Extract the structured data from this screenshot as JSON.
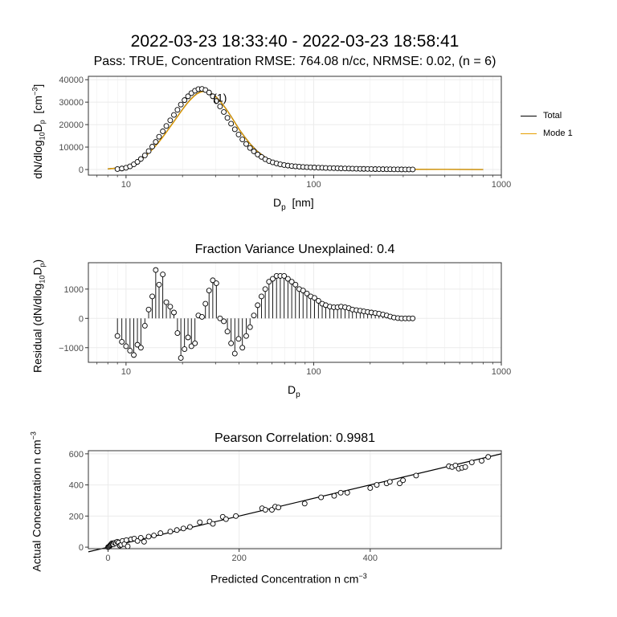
{
  "header": {
    "title": "2022-03-23 18:33:40 - 2022-03-23 18:58:41",
    "subtitle": "Pass: TRUE, Concentration RMSE: 764.08 n/cc, NRMSE: 0.02, (n = 6)"
  },
  "colors": {
    "total": "#000000",
    "mode1": "#E69F00",
    "grid": "#ebebeb",
    "point": "#000000"
  },
  "chart_data": [
    {
      "type": "scatter",
      "xscale": "log",
      "xlim": [
        6.3,
        1000
      ],
      "ylim": [
        -2500,
        41500
      ],
      "xticks": [
        10,
        100,
        1000
      ],
      "xtick_labels": [
        "10",
        "100",
        "1000"
      ],
      "yticks": [
        0,
        10000,
        20000,
        30000,
        40000
      ],
      "ytick_labels": [
        "0",
        "10000",
        "20000",
        "30000",
        "40000"
      ],
      "xlabel_main": "D",
      "xlabel_sub": "p",
      "xlabel_unit": "[nm]",
      "ylabel_main": "dN/dlog",
      "ylabel_sub1": "10",
      "ylabel_mid": "D",
      "ylabel_sub2": "p",
      "ylabel_unit": "[cm",
      "ylabel_sup": "−3",
      "ylabel_close": "]",
      "annotation": "(1)",
      "annotation_at": [
        30,
        32000
      ],
      "legend": [
        "Total",
        "Mode 1"
      ],
      "legend_position": "right",
      "grid": true,
      "measured": {
        "x": [
          9,
          9.5,
          10,
          10.5,
          11,
          11.5,
          12,
          12.6,
          13.2,
          13.8,
          14.4,
          15,
          15.7,
          16.4,
          17.2,
          18,
          18.8,
          19.6,
          20.5,
          21.4,
          22.3,
          23.3,
          24.3,
          25.4,
          26.5,
          27.7,
          29,
          30.3,
          31.7,
          33.2,
          34.7,
          36.3,
          38,
          39.8,
          41.7,
          43.7,
          45.8,
          48,
          50.3,
          52.7,
          55.2,
          57.8,
          60.5,
          63.4,
          66.4,
          69.6,
          72.9,
          76.4,
          80,
          83.8,
          87.8,
          92,
          96.4,
          101,
          106,
          111,
          116,
          122,
          128,
          134,
          140,
          147,
          154,
          161,
          169,
          177,
          185,
          194,
          203,
          213,
          223,
          234,
          245,
          256,
          268,
          281,
          294,
          308,
          322,
          337
        ],
        "y": [
          200,
          450,
          800,
          1400,
          2300,
          3400,
          4700,
          6300,
          8200,
          10200,
          12300,
          14600,
          17000,
          19400,
          21900,
          24300,
          26600,
          28900,
          30900,
          32600,
          34000,
          35100,
          35800,
          35900,
          35400,
          34300,
          32600,
          30500,
          28100,
          25600,
          23000,
          20400,
          17900,
          15600,
          13400,
          11400,
          9600,
          8100,
          6700,
          5600,
          4600,
          3800,
          3200,
          2700,
          2300,
          2000,
          1750,
          1550,
          1400,
          1270,
          1150,
          1060,
          980,
          900,
          830,
          770,
          710,
          650,
          600,
          550,
          500,
          460,
          420,
          380,
          340,
          300,
          270,
          240,
          210,
          180,
          160,
          140,
          120,
          100,
          80,
          60,
          45,
          30,
          20,
          10
        ]
      },
      "fit_total": {
        "x": [
          8,
          9,
          10,
          11,
          12,
          13,
          14,
          15,
          16,
          17,
          18,
          19,
          20,
          21,
          22,
          23,
          24,
          25,
          26,
          27,
          28,
          30,
          32,
          34,
          36,
          38,
          40,
          43,
          46,
          50,
          55,
          60,
          66,
          73,
          80,
          90,
          100,
          120,
          150,
          200,
          300,
          500,
          800
        ],
        "y": [
          300,
          700,
          1400,
          2700,
          4500,
          6800,
          9500,
          12400,
          15400,
          18500,
          21400,
          24200,
          26800,
          29100,
          31100,
          32700,
          33900,
          34600,
          34900,
          34800,
          34300,
          32600,
          30100,
          27200,
          24100,
          21000,
          18000,
          14400,
          11300,
          8200,
          5600,
          3800,
          2500,
          1600,
          1200,
          900,
          750,
          550,
          400,
          250,
          120,
          40,
          10
        ]
      },
      "fit_mode1": {
        "x": [
          8,
          9,
          10,
          11,
          12,
          13,
          14,
          15,
          16,
          17,
          18,
          19,
          20,
          21,
          22,
          23,
          24,
          25,
          26,
          27,
          28,
          30,
          32,
          34,
          36,
          38,
          40,
          43,
          46,
          50,
          55,
          60,
          66,
          73,
          80,
          90,
          100,
          120,
          150,
          200,
          300,
          500,
          800
        ],
        "y": [
          250,
          650,
          1350,
          2600,
          4400,
          6700,
          9400,
          12300,
          15300,
          18400,
          21300,
          24100,
          26700,
          29000,
          31000,
          32600,
          33800,
          34500,
          34800,
          34700,
          34200,
          32500,
          30000,
          27100,
          24000,
          20900,
          17900,
          14300,
          11200,
          8100,
          5500,
          3700,
          2400,
          1500,
          1100,
          850,
          700,
          520,
          380,
          240,
          110,
          35,
          8
        ]
      }
    },
    {
      "type": "scatter",
      "title": "Fraction Variance Unexplained: 0.4",
      "xscale": "log",
      "xlim": [
        6.3,
        1000
      ],
      "ylim": [
        -1500,
        1900
      ],
      "xticks": [
        10,
        100,
        1000
      ],
      "xtick_labels": [
        "10",
        "100",
        "1000"
      ],
      "yticks": [
        -1000,
        0,
        1000
      ],
      "ytick_labels": [
        "−1000",
        "0",
        "1000"
      ],
      "xlabel_main": "D",
      "xlabel_sub": "p",
      "ylabel_main": "Residual (dN/dlog",
      "ylabel_sub1": "10",
      "ylabel_mid": "D",
      "ylabel_sub2": "p",
      "ylabel_close": ")",
      "grid": true,
      "residuals": {
        "x": [
          9,
          9.5,
          10,
          10.5,
          11,
          11.5,
          12,
          12.6,
          13.2,
          13.8,
          14.4,
          15,
          15.7,
          16.4,
          17.2,
          18,
          18.8,
          19.6,
          20.5,
          21.4,
          22.3,
          23.3,
          24.3,
          25.4,
          26.5,
          27.7,
          29,
          30.3,
          31.7,
          33.2,
          34.7,
          36.3,
          38,
          39.8,
          41.7,
          43.7,
          45.8,
          48,
          50.3,
          52.7,
          55.2,
          57.8,
          60.5,
          63.4,
          66.4,
          69.6,
          72.9,
          76.4,
          80,
          83.8,
          87.8,
          92,
          96.4,
          101,
          106,
          111,
          116,
          122,
          128,
          134,
          140,
          147,
          154,
          161,
          169,
          177,
          185,
          194,
          203,
          213,
          223,
          234,
          245,
          256,
          268,
          281,
          294,
          308,
          322,
          337
        ],
        "y": [
          -600,
          -800,
          -950,
          -1100,
          -1250,
          -900,
          -1000,
          -250,
          300,
          750,
          1650,
          1150,
          1500,
          550,
          400,
          200,
          -500,
          -1350,
          -1050,
          -650,
          -950,
          -850,
          100,
          50,
          500,
          950,
          1300,
          1200,
          0,
          -100,
          -450,
          -850,
          -1200,
          -700,
          -1000,
          -600,
          -300,
          100,
          450,
          750,
          1000,
          1250,
          1350,
          1450,
          1450,
          1450,
          1350,
          1250,
          1150,
          1000,
          950,
          850,
          750,
          700,
          600,
          500,
          450,
          400,
          380,
          380,
          400,
          380,
          350,
          300,
          280,
          260,
          240,
          220,
          200,
          180,
          160,
          130,
          100,
          60,
          30,
          10,
          0,
          0,
          0,
          0
        ]
      }
    },
    {
      "type": "scatter",
      "title": "Pearson Correlation: 0.9981",
      "xlim": [
        -30,
        600
      ],
      "ylim": [
        -10,
        620
      ],
      "xticks": [
        0,
        200,
        400
      ],
      "xtick_labels": [
        "0",
        "200",
        "400"
      ],
      "yticks": [
        0,
        200,
        400,
        600
      ],
      "ytick_labels": [
        "0",
        "200",
        "400",
        "600"
      ],
      "xlabel": "Predicted Concentration  n cm",
      "xlabel_sup": "−3",
      "ylabel": "Actual Concentration  n cm",
      "ylabel_sup": "−3",
      "grid": true,
      "fit_line": {
        "slope": 1.0,
        "intercept": 0
      },
      "points": {
        "x": [
          0,
          1,
          2,
          3,
          4,
          5,
          6,
          7,
          8,
          10,
          12,
          14,
          16,
          18,
          20,
          22,
          25,
          28,
          30,
          35,
          40,
          45,
          50,
          55,
          62,
          70,
          80,
          95,
          105,
          115,
          125,
          140,
          155,
          160,
          175,
          180,
          195,
          235,
          240,
          250,
          255,
          260,
          300,
          325,
          345,
          355,
          365,
          400,
          410,
          425,
          430,
          445,
          450,
          470,
          520,
          525,
          530,
          535,
          540,
          545,
          555,
          570,
          580
        ],
        "y": [
          0,
          2,
          5,
          10,
          15,
          20,
          25,
          22,
          18,
          28,
          25,
          35,
          30,
          10,
          15,
          40,
          20,
          45,
          5,
          50,
          55,
          40,
          60,
          35,
          68,
          75,
          90,
          100,
          110,
          120,
          130,
          160,
          165,
          150,
          195,
          180,
          200,
          250,
          240,
          240,
          260,
          255,
          280,
          320,
          330,
          350,
          350,
          380,
          400,
          410,
          420,
          410,
          430,
          460,
          520,
          515,
          525,
          505,
          510,
          515,
          545,
          555,
          580
        ]
      }
    }
  ]
}
